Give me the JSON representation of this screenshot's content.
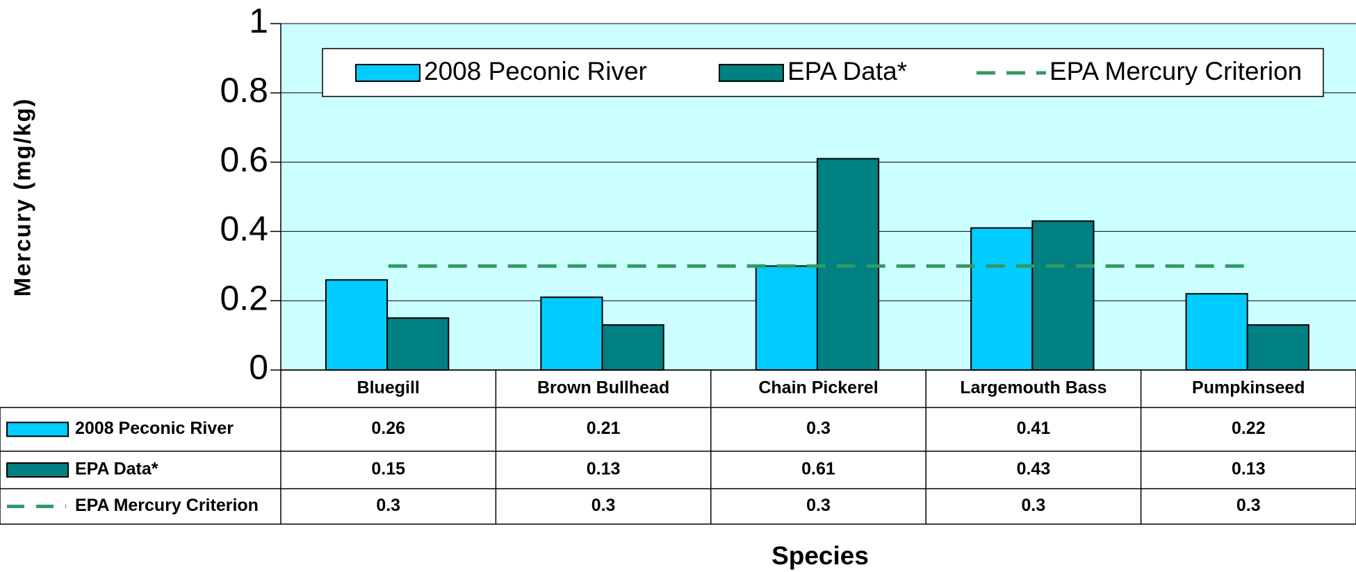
{
  "chart_data": {
    "type": "bar",
    "y_label": "Mercury (mg/kg)",
    "x_label": "Species",
    "categories": [
      "Bluegill",
      "Brown Bullhead",
      "Chain Pickerel",
      "Largemouth Bass",
      "Pumpkinseed"
    ],
    "series": [
      {
        "name": "2008 Peconic River",
        "color": "#00ccff",
        "values": [
          0.26,
          0.21,
          0.3,
          0.41,
          0.22
        ]
      },
      {
        "name": "EPA Data*",
        "color": "#008080",
        "values": [
          0.15,
          0.13,
          0.61,
          0.43,
          0.13
        ]
      },
      {
        "name": "EPA Mercury Criterion",
        "color": "#339966",
        "type": "line",
        "dashed": true,
        "values": [
          0.3,
          0.3,
          0.3,
          0.3,
          0.3
        ]
      }
    ],
    "ylim": [
      0,
      1
    ],
    "yticks": [
      0,
      0.2,
      0.4,
      0.6,
      0.8,
      1
    ],
    "grid": true,
    "legend": "top",
    "data_table": true
  }
}
